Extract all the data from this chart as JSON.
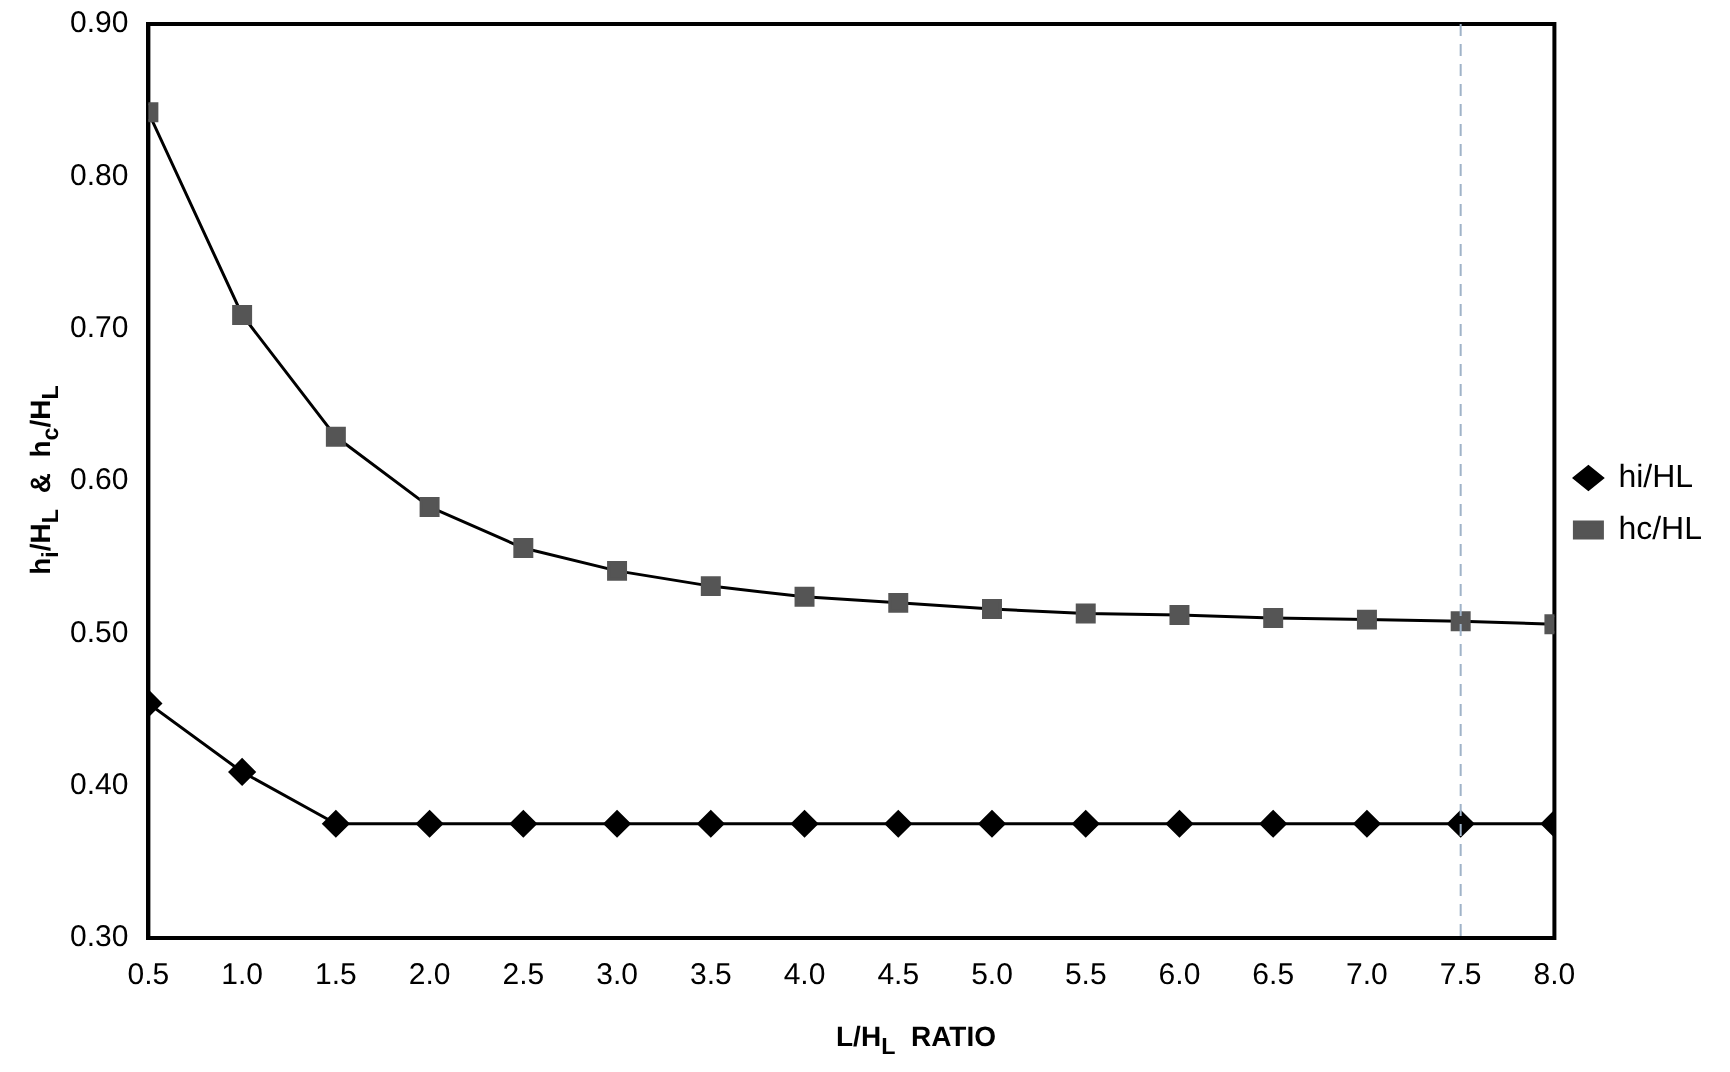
{
  "chart_data": {
    "type": "line",
    "xlabel": "L/H$_{L}$  RATIO",
    "ylabel": "h$_{i}$/H$_{L}$  &  h$_{c}$/H$_{L}$",
    "x": [
      0.5,
      1,
      1.5,
      2,
      2.5,
      3,
      3.5,
      4,
      4.5,
      5,
      5.5,
      6,
      6.5,
      7,
      7.5,
      8
    ],
    "series": [
      {
        "name": "hi/HL",
        "color": "#000000",
        "marker": "diamond",
        "values": [
          0.454,
          0.409,
          0.375,
          0.375,
          0.375,
          0.375,
          0.375,
          0.375,
          0.375,
          0.375,
          0.375,
          0.375,
          0.375,
          0.375,
          0.375,
          0.375
        ]
      },
      {
        "name": "hc/HL",
        "color": "#555555",
        "marker": "square",
        "values": [
          0.842,
          0.709,
          0.629,
          0.583,
          0.556,
          0.541,
          0.531,
          0.524,
          0.52,
          0.516,
          0.513,
          0.512,
          0.51,
          0.509,
          0.508,
          0.506
        ]
      }
    ],
    "xlim": [
      0.5,
      8
    ],
    "xticks": [
      0.5,
      {
        "value": 1,
        "label": "1.0"
      },
      1.5,
      {
        "value": 2,
        "label": "2.0"
      },
      2.5,
      {
        "value": 3,
        "label": "3.0"
      },
      3.5,
      {
        "value": 4,
        "label": "4.0"
      },
      4.5,
      {
        "value": 5,
        "label": "5.0"
      },
      5.5,
      {
        "value": 6,
        "label": "6.0"
      },
      6.5,
      {
        "value": 7,
        "label": "7.0"
      },
      7.5,
      {
        "value": 8,
        "label": "8.0"
      }
    ],
    "ylim": [
      0.3,
      0.9
    ],
    "yticks": [
      {
        "value": 0.3,
        "label": "0.30"
      },
      {
        "value": 0.4,
        "label": "0.40"
      },
      {
        "value": 0.5,
        "label": "0.50"
      },
      {
        "value": 0.6,
        "label": "0.60"
      },
      {
        "value": 0.7,
        "label": "0.70"
      },
      {
        "value": 0.8,
        "label": "0.80"
      },
      {
        "value": 0.9,
        "label": "0.90"
      }
    ],
    "ref_lines": [
      {
        "axis": "x",
        "value": 7.5,
        "color": "#9fb3c8",
        "line_style": "dashed"
      }
    ],
    "grid": false,
    "legend": "right",
    "line_style": "solid"
  }
}
